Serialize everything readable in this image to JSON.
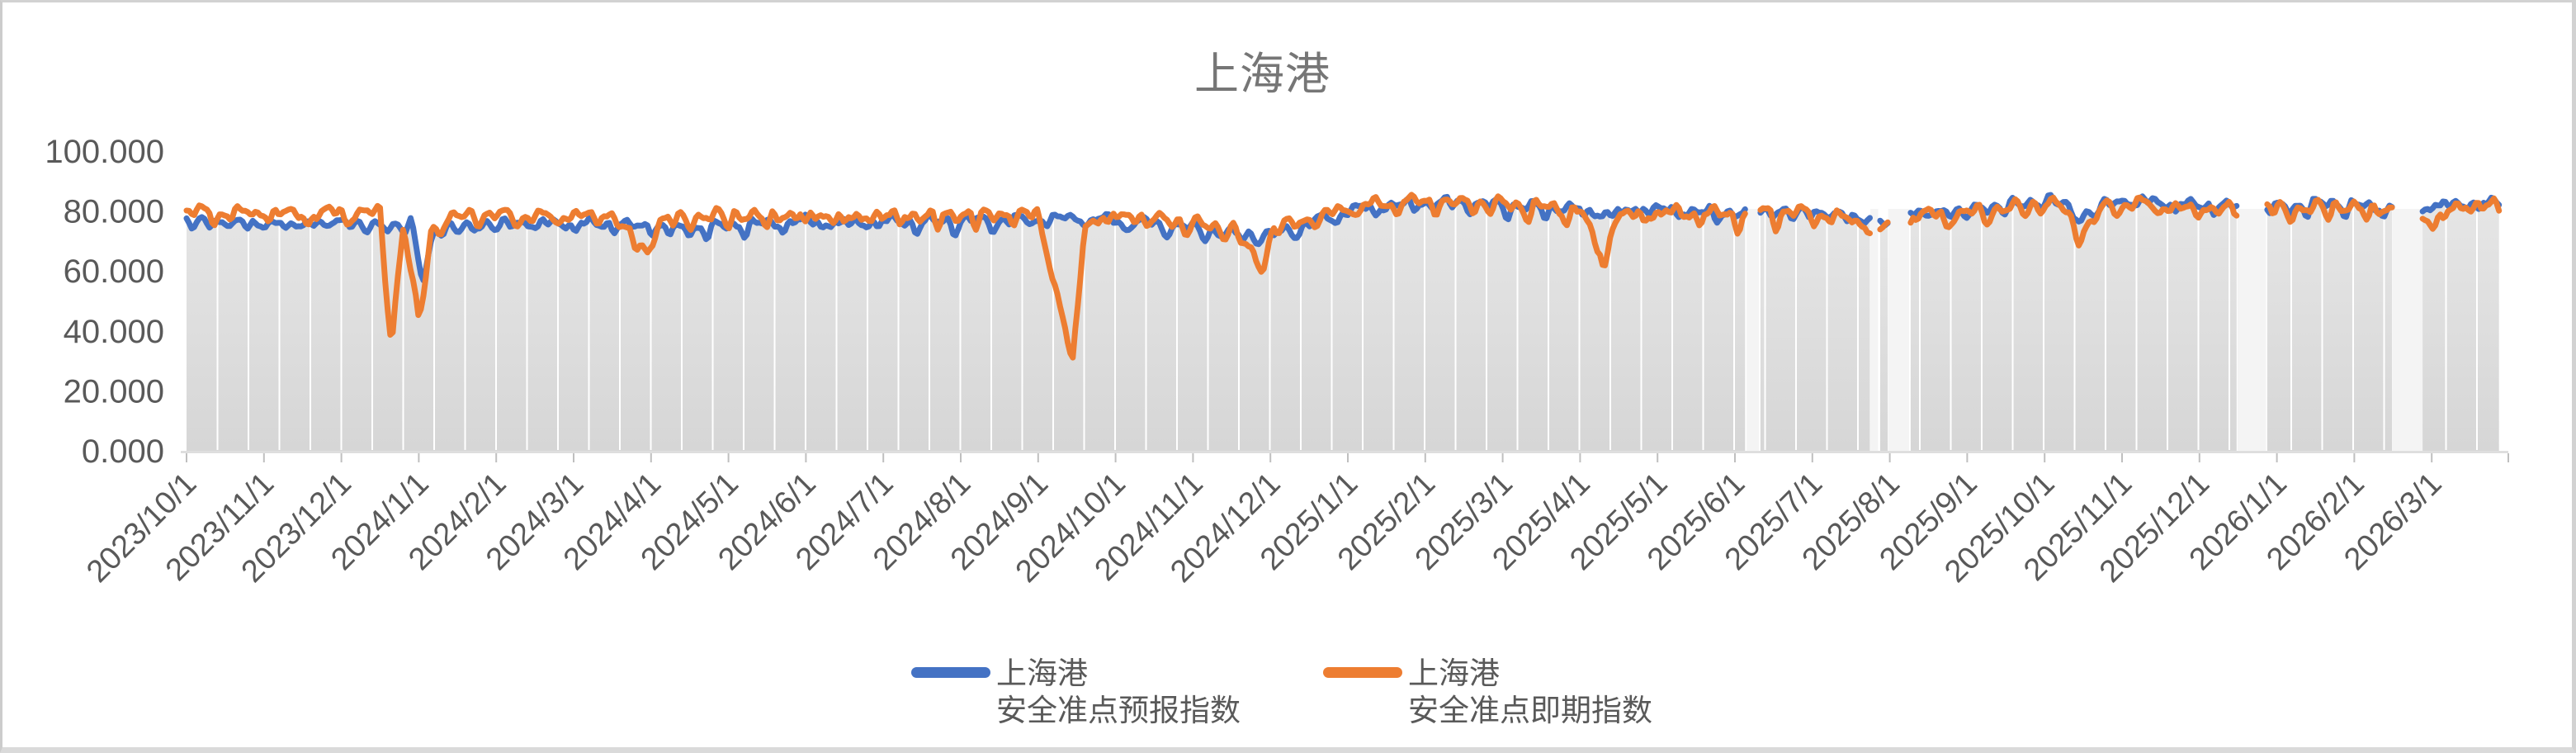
{
  "page": {
    "background": "#ffffff",
    "border_color": "#d2d2d2"
  },
  "chart_data": {
    "type": "line",
    "title": "上海港",
    "title_color": "#767676",
    "y_axis": {
      "min": 0,
      "max": 100,
      "tick_values": [
        0,
        20,
        40,
        60,
        80,
        100
      ],
      "tick_labels": [
        "0.000",
        "20.000",
        "40.000",
        "60.000",
        "80.000",
        "100.000"
      ],
      "label_color": "#595959"
    },
    "x_axis": {
      "tick_labels": [
        "2023/10/1",
        "2023/11/1",
        "2023/12/1",
        "2024/1/1",
        "2024/2/1",
        "2024/3/1",
        "2024/4/1",
        "2024/5/1",
        "2024/6/1",
        "2024/7/1",
        "2024/8/1",
        "2024/9/1",
        "2024/10/1",
        "2024/11/1",
        "2024/12/1",
        "2025/1/1",
        "2025/2/1",
        "2025/3/1",
        "2025/4/1",
        "2025/5/1",
        "2025/6/1",
        "2025/7/1",
        "2025/8/1",
        "2025/9/1",
        "2025/10/1",
        "2025/11/1",
        "2025/12/1",
        "2026/1/1",
        "2026/2/1",
        "2026/3/1"
      ],
      "label_color": "#595959",
      "axis_color": "#d9d9d9",
      "tick_color": "#bfbfbf"
    },
    "plot_style": {
      "area_fill_top": "#e6e6e6",
      "area_fill_bottom": "#d6d6d6",
      "gap_fill": "#f4f4f4",
      "gridline_color": "#ffffff"
    },
    "series": [
      {
        "name_line1": "上海港",
        "name_line2": "安全准点预报指数",
        "color": "#4472C4",
        "noise_amp": 2.2,
        "spike_amp": 3.6,
        "anchors": [
          [
            0,
            77
          ],
          [
            0.5,
            76.5
          ],
          [
            1,
            76
          ],
          [
            1.5,
            76
          ],
          [
            2,
            77
          ],
          [
            2.5,
            75
          ],
          [
            2.9,
            76
          ],
          [
            3.05,
            57
          ],
          [
            3.2,
            74
          ],
          [
            3.6,
            75
          ],
          [
            4,
            76
          ],
          [
            4.5,
            76.5
          ],
          [
            5,
            76
          ],
          [
            5.5,
            76
          ],
          [
            6,
            75
          ],
          [
            6.5,
            74
          ],
          [
            7,
            75.5
          ],
          [
            7.5,
            76
          ],
          [
            8,
            77
          ],
          [
            8.5,
            76
          ],
          [
            9,
            77
          ],
          [
            9.5,
            76.5
          ],
          [
            10,
            77
          ],
          [
            10.5,
            77
          ],
          [
            11,
            77.5
          ],
          [
            11.5,
            78
          ],
          [
            12,
            77
          ],
          [
            12.5,
            76
          ],
          [
            13,
            74.5
          ],
          [
            13.5,
            72.5
          ],
          [
            14,
            72
          ],
          [
            14.5,
            76
          ],
          [
            15,
            80.5
          ],
          [
            15.5,
            82
          ],
          [
            16,
            83
          ],
          [
            16.5,
            83
          ],
          [
            17,
            82
          ],
          [
            17.5,
            81.5
          ],
          [
            18,
            81
          ],
          [
            18.3,
            79
          ],
          [
            18.7,
            81
          ],
          [
            19,
            81
          ],
          [
            19.5,
            80
          ],
          [
            20,
            79.5
          ],
          [
            20.5,
            80
          ],
          [
            21,
            80
          ],
          [
            21.5,
            78.5
          ],
          [
            21.9,
            76.5
          ],
          [
            22.3,
            80
          ],
          [
            22.8,
            80
          ],
          [
            23.3,
            81.5
          ],
          [
            23.8,
            83
          ],
          [
            24.2,
            84
          ],
          [
            24.45,
            77.5
          ],
          [
            24.8,
            83
          ],
          [
            25.2,
            84
          ],
          [
            25.7,
            82.5
          ],
          [
            26.2,
            82
          ],
          [
            26.7,
            82
          ],
          [
            27.2,
            81.5
          ],
          [
            27.7,
            83
          ],
          [
            28.2,
            81.5
          ],
          [
            28.7,
            82
          ],
          [
            29.1,
            82
          ],
          [
            29.5,
            83
          ],
          [
            29.9,
            82.5
          ]
        ]
      },
      {
        "name_line1": "上海港",
        "name_line2": "安全准点即期指数",
        "color": "#ED7D31",
        "noise_amp": 2.6,
        "spike_amp": 4.6,
        "anchors": [
          [
            0,
            80
          ],
          [
            0.5,
            79.5
          ],
          [
            1,
            80
          ],
          [
            1.5,
            79
          ],
          [
            2,
            80
          ],
          [
            2.5,
            79.5
          ],
          [
            2.65,
            37
          ],
          [
            2.8,
            76
          ],
          [
            3,
            43
          ],
          [
            3.15,
            73
          ],
          [
            3.5,
            79
          ],
          [
            4,
            79
          ],
          [
            4.5,
            78.5
          ],
          [
            5,
            79
          ],
          [
            5.5,
            79
          ],
          [
            5.95,
            66
          ],
          [
            6.1,
            77
          ],
          [
            6.5,
            78
          ],
          [
            7,
            79
          ],
          [
            7.5,
            78.5
          ],
          [
            8,
            79
          ],
          [
            8.5,
            78
          ],
          [
            9,
            79
          ],
          [
            9.5,
            78.5
          ],
          [
            10,
            79
          ],
          [
            10.5,
            79
          ],
          [
            11,
            79.5
          ],
          [
            11.45,
            30
          ],
          [
            11.6,
            76
          ],
          [
            12,
            79
          ],
          [
            12.5,
            78
          ],
          [
            13,
            76
          ],
          [
            13.5,
            74.5
          ],
          [
            13.9,
            62
          ],
          [
            14.05,
            75
          ],
          [
            14.5,
            77.5
          ],
          [
            15,
            81.5
          ],
          [
            15.5,
            83
          ],
          [
            16,
            83.5
          ],
          [
            16.5,
            83
          ],
          [
            17,
            82.5
          ],
          [
            17.5,
            81.5
          ],
          [
            18,
            80.5
          ],
          [
            18.3,
            64
          ],
          [
            18.45,
            78
          ],
          [
            19,
            80
          ],
          [
            19.5,
            79.5
          ],
          [
            20,
            79
          ],
          [
            20.5,
            80
          ],
          [
            21,
            79.5
          ],
          [
            21.5,
            77.5
          ],
          [
            21.9,
            74.5
          ],
          [
            22.3,
            79
          ],
          [
            22.8,
            79
          ],
          [
            23.3,
            80.5
          ],
          [
            23.8,
            82
          ],
          [
            24.2,
            83
          ],
          [
            24.45,
            72.5
          ],
          [
            24.8,
            82
          ],
          [
            25.2,
            83
          ],
          [
            25.7,
            81.5
          ],
          [
            26.2,
            81
          ],
          [
            26.7,
            82
          ],
          [
            27.2,
            80.5
          ],
          [
            27.7,
            82
          ],
          [
            28.2,
            81
          ],
          [
            28.7,
            80.5
          ],
          [
            29,
            76
          ],
          [
            29.3,
            82
          ],
          [
            29.6,
            82
          ],
          [
            29.9,
            83
          ]
        ]
      }
    ],
    "gaps_months": [
      [
        20.15,
        20.31
      ],
      [
        21.75,
        21.85
      ],
      [
        21.98,
        22.25
      ],
      [
        26.49,
        26.86
      ],
      [
        28.49,
        28.88
      ]
    ],
    "gap_date_ranges": [
      "2025/6 early",
      "2025/7 late",
      "2025/8 early",
      "2025/12 mid-late",
      "2026/2 mid-late"
    ],
    "x_start_label": "2023/10/1",
    "x_end_month": 29.9,
    "notable_dips": [
      {
        "series": "安全准点即期指数",
        "date": "2023/12/20",
        "low": 37
      },
      {
        "series": "安全准点即期指数",
        "date": "2024/1/1",
        "low": 43
      },
      {
        "series": "安全准点预报指数",
        "date": "2024/1/3",
        "low": 57
      },
      {
        "series": "安全准点即期指数",
        "date": "2024/4/1",
        "low": 66
      },
      {
        "series": "安全准点即期指数",
        "date": "2024/9/15",
        "low": 30
      },
      {
        "series": "安全准点即期指数",
        "date": "2024/11/28",
        "low": 62
      },
      {
        "series": "安全准点即期指数",
        "date": "2025/4/10",
        "low": 64
      },
      {
        "series": "安全准点即期指数",
        "date": "2025/10/15",
        "low": 72
      }
    ]
  },
  "legend": {
    "items": [
      {
        "line1": "上海港",
        "line2": "安全准点预报指数",
        "color": "#4472C4"
      },
      {
        "line1": "上海港",
        "line2": "安全准点即期指数",
        "color": "#ED7D31"
      }
    ]
  }
}
